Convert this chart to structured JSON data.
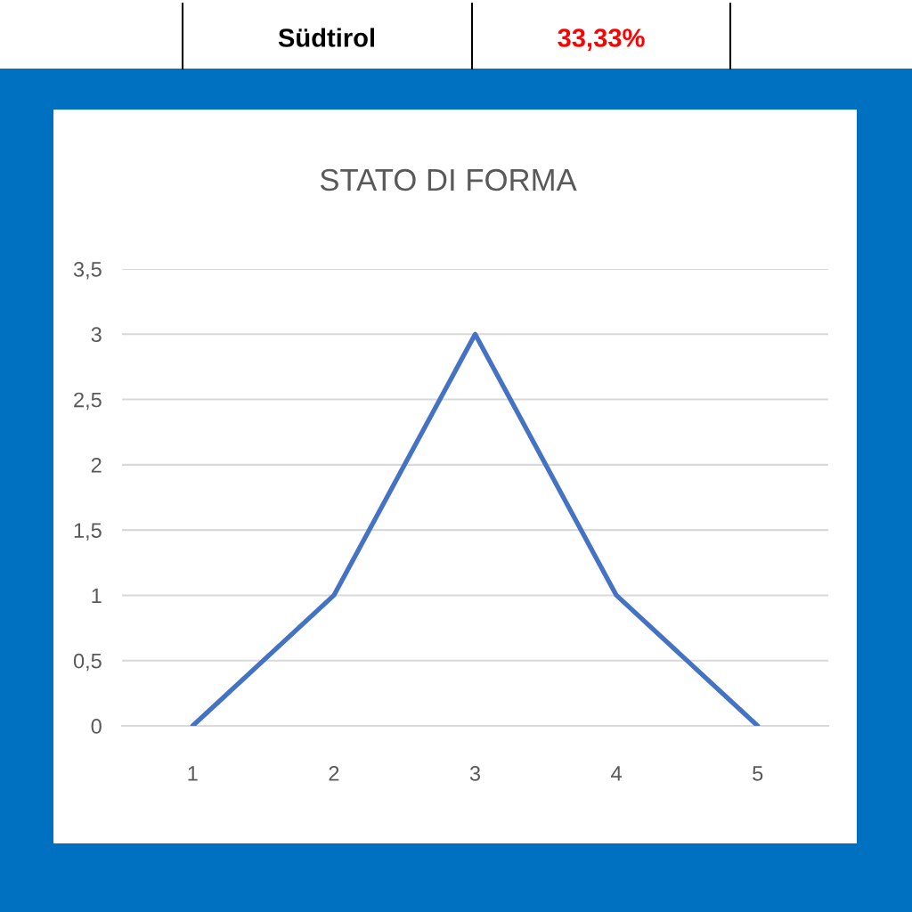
{
  "chart_data": {
    "type": "line",
    "title": "STATO DI FORMA",
    "annotations": [
      "Südtirol",
      "33,33%"
    ],
    "categories": [
      "1",
      "2",
      "3",
      "4",
      "5"
    ],
    "series": [
      {
        "color": "#4472c4",
        "values": [
          0,
          1,
          3,
          1,
          0
        ]
      }
    ],
    "ylim": [
      0,
      3.5
    ],
    "yticks": [
      0,
      {
        "value": 0.5,
        "label": "0,5"
      },
      1,
      {
        "value": 1.5,
        "label": "1,5"
      },
      2,
      {
        "value": 2.5,
        "label": "2,5"
      },
      3,
      {
        "value": 3.5,
        "label": "3,5"
      }
    ],
    "grid": "y",
    "line_style": "solid"
  }
}
